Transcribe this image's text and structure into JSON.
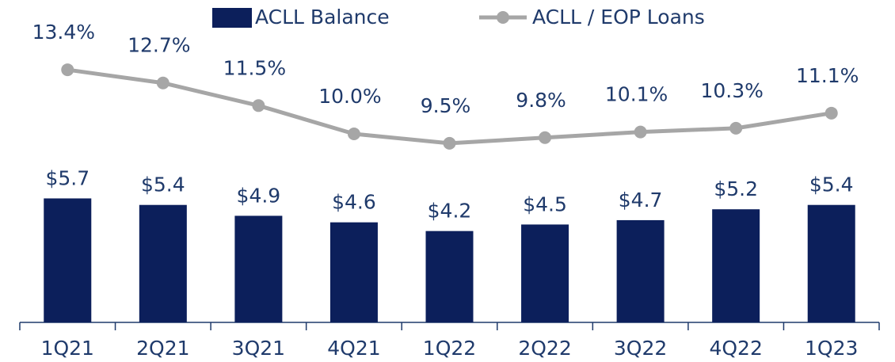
{
  "chart_data": {
    "type": "bar_line",
    "categories": [
      "1Q21",
      "2Q21",
      "3Q21",
      "4Q21",
      "1Q22",
      "2Q22",
      "3Q22",
      "4Q22",
      "1Q23"
    ],
    "series": [
      {
        "name": "ACLL Balance",
        "type": "bar",
        "color": "#0c1f5b",
        "values": [
          5.7,
          5.4,
          4.9,
          4.6,
          4.2,
          4.5,
          4.7,
          5.2,
          5.4
        ],
        "value_labels": [
          "$5.7",
          "$5.4",
          "$4.9",
          "$4.6",
          "$4.2",
          "$4.5",
          "$4.7",
          "$5.2",
          "$5.4"
        ]
      },
      {
        "name": "ACLL / EOP Loans",
        "type": "line",
        "color": "#a6a6a6",
        "axis": "y2",
        "values": [
          13.4,
          12.7,
          11.5,
          10.0,
          9.5,
          9.8,
          10.1,
          10.3,
          11.1
        ],
        "value_labels": [
          "13.4%",
          "12.7%",
          "11.5%",
          "10.0%",
          "9.5%",
          "9.8%",
          "10.1%",
          "10.3%",
          "11.1%"
        ]
      }
    ],
    "ylim": [
      0,
      13
    ],
    "y2lim": [
      0,
      15
    ],
    "grid": false,
    "legend": "top"
  }
}
